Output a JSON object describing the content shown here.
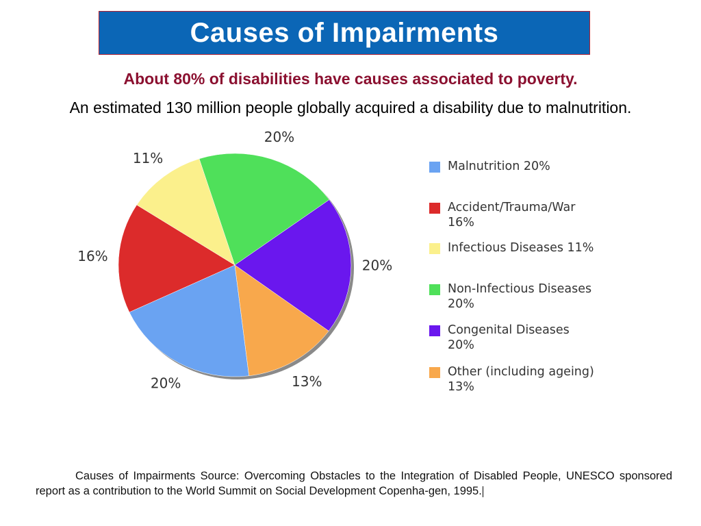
{
  "slide": {
    "title": "Causes of Impairments",
    "subtitle_red": "About 80% of disabilities have causes associated to poverty.",
    "subtitle_black": "An estimated 130 million people globally acquired a disability due to malnutrition.",
    "source_text": "Causes of Impairments Source: Overcoming Obstacles to the Integration of Disabled People, UNESCO sponsored report as a contribution to the World Summit on Social Development Copenha-gen, 1995."
  },
  "colors": {
    "title_bg": "#0b66b6",
    "subtitle_red": "#8b1030"
  },
  "chart_data": {
    "type": "pie",
    "title": "",
    "legend_position": "right",
    "slices": [
      {
        "label": "Malnutrition",
        "legend_text": "Malnutrition  20%",
        "value": 20,
        "data_label": "20%",
        "color": "#6aa3f2"
      },
      {
        "label": "Accident/Trauma/War",
        "legend_text": "Accident/Trauma/War 16%",
        "value": 16,
        "data_label": "16%",
        "color": "#dc2b2b"
      },
      {
        "label": "Infectious Diseases",
        "legend_text": "Infectious Diseases 11%",
        "value": 11,
        "data_label": "11%",
        "color": "#fbf08c"
      },
      {
        "label": "Non-Infectious Diseases",
        "legend_text": "Non-Infectious Diseases 20%",
        "value": 20,
        "data_label": "20%",
        "color": "#4fe05a"
      },
      {
        "label": "Congenital Diseases",
        "legend_text": "Congenital Diseases 20%",
        "value": 20,
        "data_label": "20%",
        "color": "#6a17ee"
      },
      {
        "label": "Other (including ageing)",
        "legend_text": "Other (including ageing) 13%",
        "value": 13,
        "data_label": "13%",
        "color": "#f8a84c"
      }
    ]
  }
}
